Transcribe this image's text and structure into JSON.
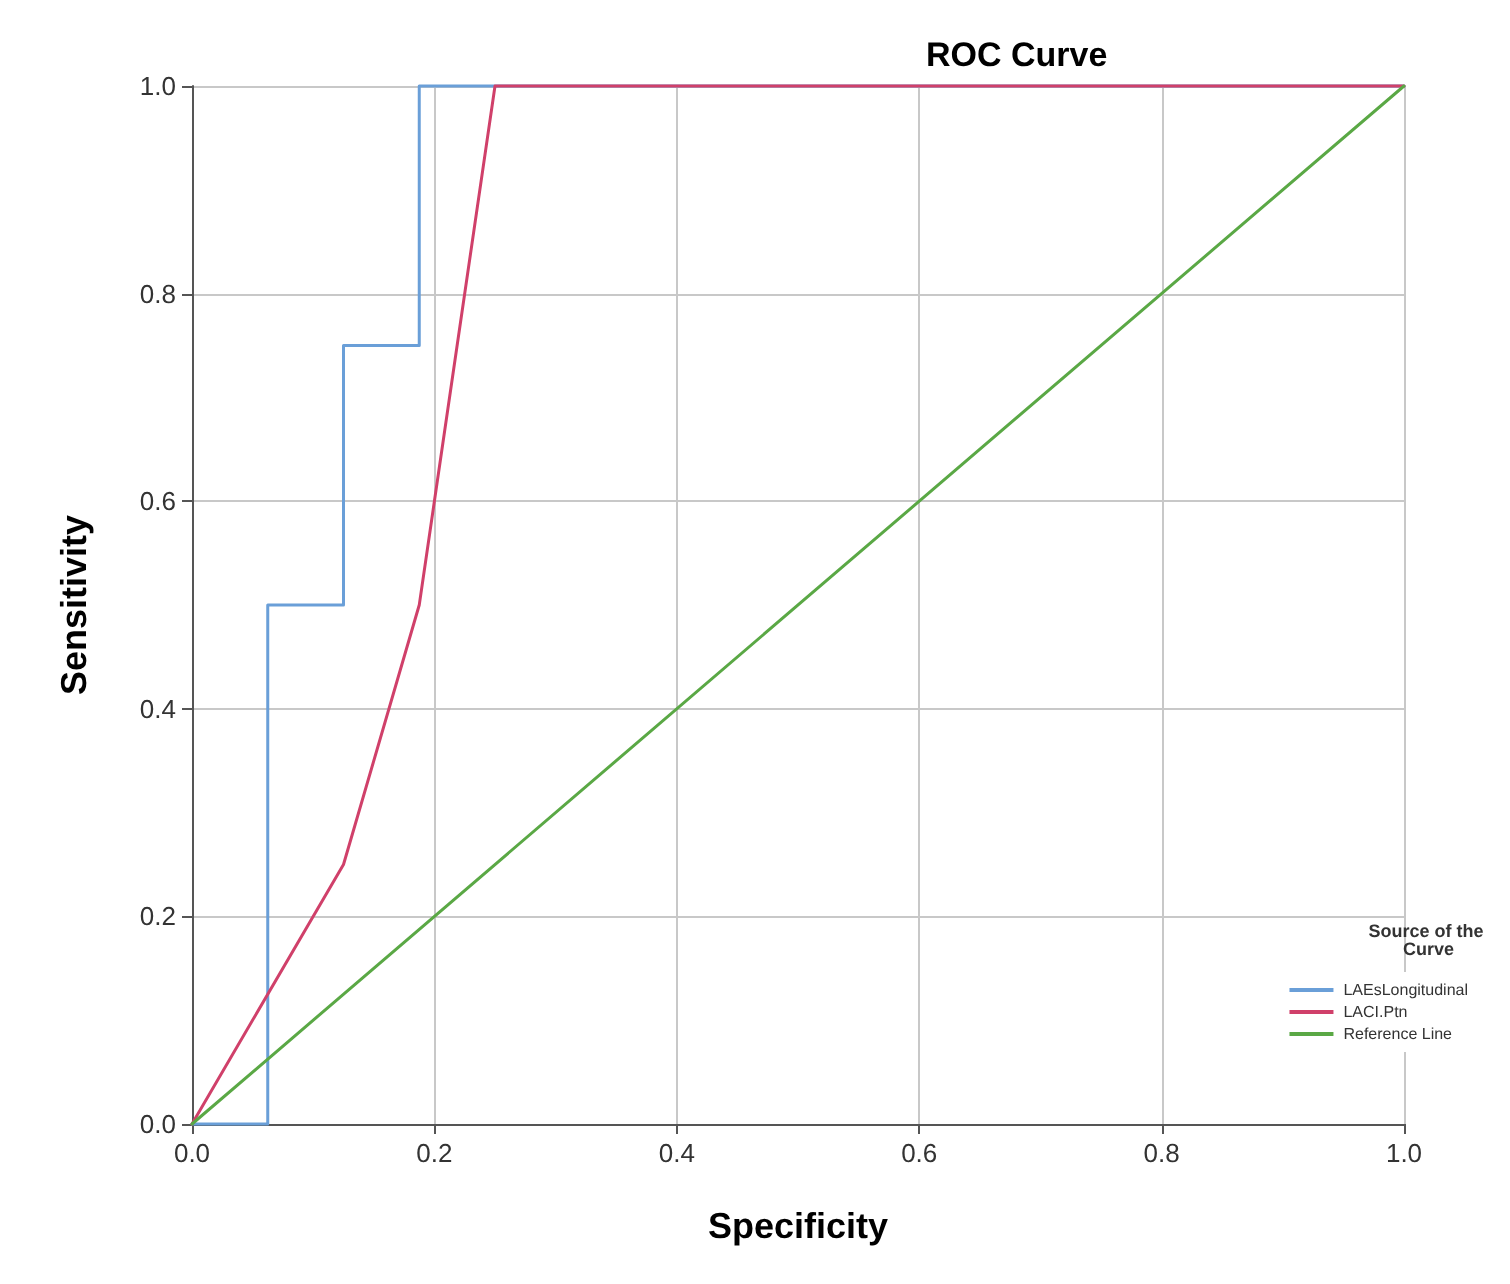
{
  "chart_data": {
    "type": "line",
    "title": "ROC Curve",
    "xlabel": "Specificity",
    "ylabel": "Sensitivity",
    "legend_title": "Source of the Curve",
    "series": [
      {
        "name": "LAEsLongitudinal",
        "color": "#6a9fd8",
        "x": [
          0,
          0.0625,
          0.0625,
          0.125,
          0.125,
          0.1875,
          0.1875,
          1
        ],
        "values": [
          0,
          0,
          0.5,
          0.5,
          0.75,
          0.75,
          1,
          1
        ]
      },
      {
        "name": "LACI.Ptn",
        "color": "#d0406a",
        "x": [
          0,
          0.125,
          0.1875,
          0.25,
          1
        ],
        "values": [
          0,
          0.25,
          0.5,
          1,
          1
        ]
      },
      {
        "name": "Reference Line",
        "color": "#5aa845",
        "x": [
          0,
          1
        ],
        "values": [
          0,
          1
        ]
      }
    ],
    "xlim": [
      0,
      1
    ],
    "ylim": [
      0,
      1
    ],
    "xticks": [
      {
        "value": 0,
        "label": "0.0"
      },
      0.2,
      0.4,
      0.6,
      0.8,
      {
        "value": 1,
        "label": "1.0"
      }
    ],
    "yticks": [
      {
        "value": 0,
        "label": "0.0"
      },
      0.2,
      0.4,
      0.6,
      0.8,
      {
        "value": 1,
        "label": "1.0"
      }
    ],
    "grid": true,
    "legend": "right",
    "marker": "none",
    "line_style": "solid"
  }
}
